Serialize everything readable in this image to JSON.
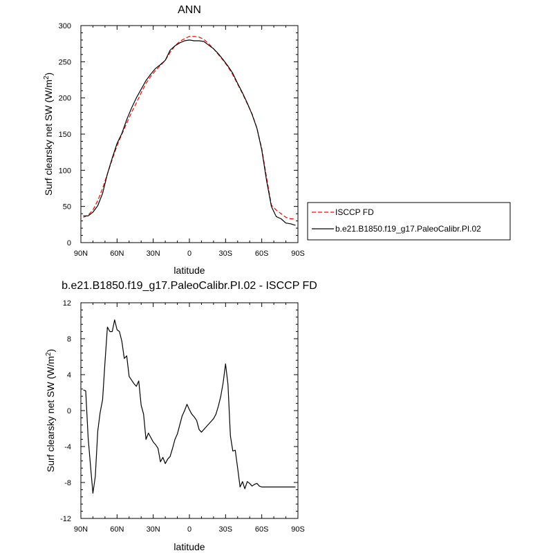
{
  "chart_data": [
    {
      "type": "line",
      "title": "ANN",
      "xlabel": "latitude",
      "ylabel_main": "Surf clearsky net SW (W/m",
      "ylabel_sup": "2",
      "ylabel_tail": ")",
      "xlim": [
        -90,
        90
      ],
      "ylim": [
        0,
        300
      ],
      "x_ticks": [
        {
          "value": -90,
          "label": "90N"
        },
        {
          "value": -60,
          "label": "60N"
        },
        {
          "value": -30,
          "label": "30N"
        },
        {
          "value": 0,
          "label": "0"
        },
        {
          "value": 30,
          "label": "30S"
        },
        {
          "value": 60,
          "label": "60S"
        },
        {
          "value": 90,
          "label": "90S"
        }
      ],
      "y_ticks": [
        0,
        50,
        100,
        150,
        200,
        250,
        300
      ],
      "legend_position": "right",
      "series": [
        {
          "name": "ISCCP FD",
          "color": "#ff0000",
          "dash": "dashed",
          "x": [
            -88,
            -84,
            -80,
            -76,
            -72,
            -68,
            -64,
            -60,
            -56,
            -52,
            -48,
            -44,
            -40,
            -36,
            -32,
            -28,
            -24,
            -20,
            -16,
            -12,
            -8,
            -4,
            0,
            4,
            8,
            12,
            16,
            20,
            24,
            28,
            32,
            36,
            40,
            44,
            48,
            52,
            56,
            60,
            64,
            68,
            72,
            76,
            80,
            84,
            88
          ],
          "y": [
            35,
            38,
            45,
            58,
            75,
            95,
            115,
            134,
            150,
            165,
            180,
            193,
            207,
            220,
            230,
            238,
            245,
            252,
            263,
            272,
            278,
            282,
            285,
            285,
            284,
            281,
            275,
            268,
            260,
            252,
            243,
            232,
            219,
            206,
            192,
            178,
            158,
            130,
            90,
            52,
            45,
            40,
            35,
            33,
            33
          ]
        },
        {
          "name": "b.e21.B1850.f19_g17.PaleoCalibr.PI.02",
          "color": "#000000",
          "dash": "solid",
          "x": [
            -88,
            -84,
            -80,
            -76,
            -72,
            -68,
            -64,
            -60,
            -56,
            -52,
            -48,
            -44,
            -40,
            -36,
            -32,
            -28,
            -24,
            -20,
            -16,
            -12,
            -8,
            -4,
            0,
            4,
            8,
            12,
            16,
            20,
            24,
            28,
            32,
            36,
            40,
            44,
            48,
            52,
            56,
            60,
            64,
            68,
            72,
            76,
            80,
            84,
            88
          ],
          "y": [
            37,
            37,
            42,
            51,
            68,
            95,
            117,
            137,
            151,
            170,
            186,
            200,
            212,
            224,
            233,
            241,
            246,
            252,
            266,
            272,
            276,
            279,
            280,
            279,
            279,
            278,
            273,
            268,
            261,
            253,
            244,
            234,
            220,
            207,
            193,
            177,
            158,
            128,
            86,
            50,
            36,
            33,
            27,
            26,
            24
          ]
        }
      ]
    },
    {
      "type": "line",
      "title": "b.e21.B1850.f19_g17.PaleoCalibr.PI.02 - ISCCP FD",
      "xlabel": "latitude",
      "ylabel_main": "Surf clearsky net SW (W/m",
      "ylabel_sup": "2",
      "ylabel_tail": ")",
      "xlim": [
        -90,
        90
      ],
      "ylim": [
        -12,
        12
      ],
      "x_ticks": [
        {
          "value": -90,
          "label": "90N"
        },
        {
          "value": -60,
          "label": "60N"
        },
        {
          "value": -30,
          "label": "30N"
        },
        {
          "value": 0,
          "label": "0"
        },
        {
          "value": 30,
          "label": "30S"
        },
        {
          "value": 60,
          "label": "60S"
        },
        {
          "value": 90,
          "label": "90S"
        }
      ],
      "y_ticks": [
        -12,
        -8,
        -4,
        0,
        4,
        8,
        12
      ],
      "series": [
        {
          "color": "#000000",
          "dash": "solid",
          "x": [
            -88,
            -86,
            -84,
            -82,
            -80,
            -78,
            -76,
            -74,
            -72,
            -70,
            -68,
            -66,
            -64,
            -62,
            -60,
            -58,
            -56,
            -54,
            -52,
            -50,
            -48,
            -46,
            -44,
            -42,
            -40,
            -38,
            -36,
            -34,
            -32,
            -30,
            -28,
            -26,
            -24,
            -22,
            -20,
            -18,
            -16,
            -14,
            -12,
            -10,
            -8,
            -6,
            -4,
            -2,
            0,
            2,
            4,
            6,
            8,
            10,
            12,
            14,
            16,
            18,
            20,
            22,
            24,
            26,
            28,
            30,
            32,
            34,
            36,
            38,
            40,
            42,
            44,
            46,
            48,
            50,
            52,
            54,
            56,
            58,
            60,
            62,
            64,
            66,
            68,
            70,
            72,
            74,
            76,
            78,
            80,
            82,
            84,
            86,
            88
          ],
          "y": [
            2.3,
            2.2,
            -3.0,
            -6.2,
            -9.2,
            -7.3,
            -2.3,
            -0.2,
            1.2,
            5.4,
            9.3,
            8.8,
            8.8,
            10.1,
            9.0,
            8.8,
            7.7,
            5.8,
            6.1,
            3.8,
            3.4,
            3.0,
            2.7,
            3.3,
            0.6,
            -0.4,
            -3.2,
            -2.5,
            -3.0,
            -3.5,
            -3.8,
            -4.2,
            -5.7,
            -5.2,
            -5.9,
            -5.4,
            -5.1,
            -4.2,
            -3.2,
            -2.6,
            -1.6,
            -0.6,
            0.0,
            0.7,
            0.1,
            -0.4,
            -0.7,
            -1.1,
            -2.1,
            -2.4,
            -2.1,
            -1.8,
            -1.5,
            -1.2,
            -0.9,
            -0.4,
            0.5,
            1.6,
            3.1,
            5.2,
            2.9,
            -2.8,
            -4.5,
            -4.4,
            -6.4,
            -8.5,
            -7.9,
            -8.7,
            -7.9,
            -8.1,
            -8.4,
            -8.2,
            -8.1,
            -8.4,
            -8.5,
            -8.5,
            -8.5,
            -8.5,
            -8.5,
            -8.5,
            -8.5,
            -8.5,
            -8.5,
            -8.5,
            -8.5,
            -8.5,
            -8.5,
            -8.5,
            -8.5
          ]
        }
      ]
    }
  ]
}
